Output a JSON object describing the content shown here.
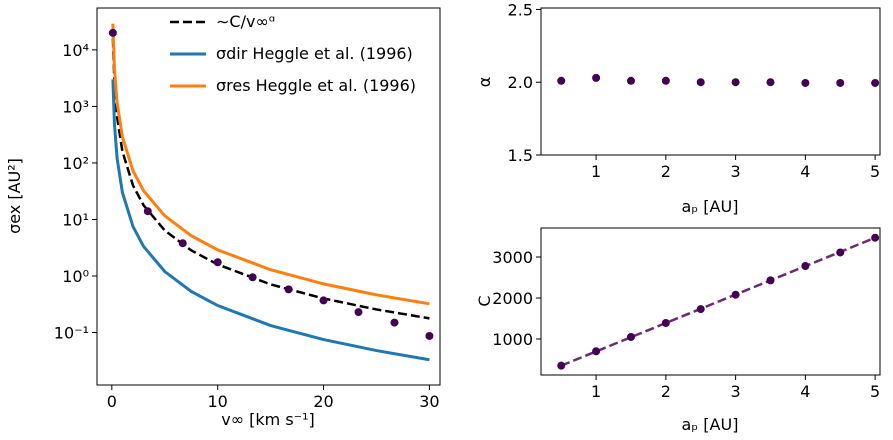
{
  "chart_data": [
    {
      "type": "line",
      "ylog": true,
      "xlabel": "v∞ [km s⁻¹]",
      "ylabel": "σex [AU²]",
      "xlim": [
        -1.4,
        31.0
      ],
      "ylim": [
        0.0118,
        55000
      ],
      "xticks": [
        0,
        10,
        20,
        30
      ],
      "yticks": [
        {
          "value": 0.1,
          "label": "10⁻¹"
        },
        {
          "value": 1,
          "label": "10⁰"
        },
        {
          "value": 10,
          "label": "10¹"
        },
        {
          "value": 100,
          "label": "10²"
        },
        {
          "value": 1000,
          "label": "10³"
        },
        {
          "value": 10000,
          "label": "10⁴"
        }
      ],
      "legend": "upper right",
      "series": [
        {
          "name": "∼C/v∞ᵅ",
          "color": "#000000",
          "style": "dashed",
          "x": [
            0.1,
            0.25,
            0.5,
            1,
            2,
            3,
            5,
            7.5,
            10,
            15,
            20,
            25,
            30
          ],
          "values": [
            16000,
            2560,
            640,
            160,
            40,
            17.8,
            6.4,
            2.84,
            1.6,
            0.71,
            0.4,
            0.256,
            0.178
          ]
        },
        {
          "name": "σdir Heggle et al. (1996)",
          "color": "#1f77b4",
          "style": "solid",
          "x": [
            0.1,
            0.25,
            0.5,
            1,
            2,
            3,
            5,
            7.5,
            10,
            15,
            20,
            25,
            30
          ],
          "values": [
            3000,
            480,
            120,
            30,
            7.5,
            3.33,
            1.2,
            0.533,
            0.3,
            0.133,
            0.075,
            0.048,
            0.033
          ]
        },
        {
          "name": "σres Heggle et al. (1996)",
          "color": "#ff7f0e",
          "style": "solid",
          "x": [
            0.1,
            0.25,
            0.5,
            1,
            2,
            3,
            5,
            7.5,
            10,
            15,
            20,
            25,
            30
          ],
          "values": [
            29000,
            4640,
            1160,
            290,
            72.5,
            32.2,
            11.6,
            5.16,
            2.9,
            1.29,
            0.725,
            0.464,
            0.322
          ]
        },
        {
          "color": "#440154",
          "style": "markers",
          "x": [
            0.1,
            3.4,
            6.7,
            10,
            13.3,
            16.7,
            20,
            23.3,
            26.7,
            30
          ],
          "values": [
            20000,
            14,
            3.8,
            1.75,
            0.95,
            0.58,
            0.37,
            0.23,
            0.15,
            0.087
          ]
        }
      ]
    },
    {
      "type": "line",
      "ylog": false,
      "xlabel": "aₚ [AU]",
      "ylabel": "α",
      "xlim": [
        0.21,
        5.07
      ],
      "ylim": [
        1.5,
        2.51
      ],
      "xticks": [
        1,
        2,
        3,
        4,
        5
      ],
      "yticks": [
        1.5,
        {
          "value": 2,
          "label": "2.0"
        },
        2.5
      ],
      "series": [
        {
          "color": "#440154",
          "style": "markers",
          "x": [
            0.5,
            1,
            1.5,
            2,
            2.5,
            3,
            3.5,
            4,
            4.5,
            5
          ],
          "values": [
            2.01,
            2.03,
            2.01,
            2.01,
            2.0,
            2.0,
            2.0,
            1.995,
            1.995,
            1.995
          ]
        }
      ]
    },
    {
      "type": "line",
      "ylog": false,
      "xlabel": "aₚ [AU]",
      "ylabel": "C",
      "xlim": [
        0.21,
        5.07
      ],
      "ylim": [
        122,
        3707
      ],
      "xticks": [
        1,
        2,
        3,
        4,
        5
      ],
      "yticks": [
        1000,
        2000,
        3000
      ],
      "series": [
        {
          "color": "#6a2c70",
          "style": "dashed",
          "x": [
            0.5,
            5
          ],
          "values": [
            350,
            3470
          ]
        },
        {
          "color": "#440154",
          "style": "markers",
          "x": [
            0.5,
            1,
            1.5,
            2,
            2.5,
            3,
            3.5,
            4,
            4.5,
            5
          ],
          "values": [
            350,
            700,
            1050,
            1390,
            1730,
            2080,
            2430,
            2780,
            3110,
            3470
          ]
        }
      ]
    }
  ]
}
